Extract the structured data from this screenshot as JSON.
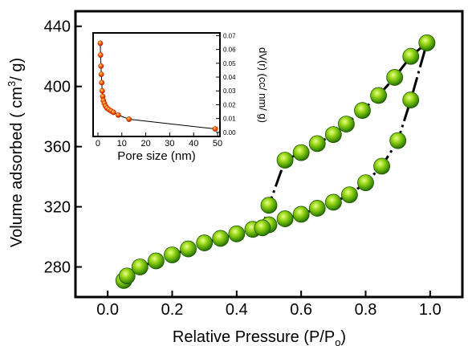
{
  "chart_data": [
    {
      "type": "scatter",
      "title": "",
      "xlabel": "Relative Pressure (P/P",
      "xlabel_sub": "o",
      "xlabel_end": ")",
      "ylabel": "Volume adsorbed ( cm",
      "ylabel_sup": "3",
      "ylabel_end": "/ g)",
      "xlim": [
        -0.1,
        1.1
      ],
      "ylim": [
        260,
        450
      ],
      "x_ticks": [
        "0.0",
        "0.2",
        "0.4",
        "0.6",
        "0.8",
        "1.0"
      ],
      "x_tick_values": [
        0.0,
        0.2,
        0.4,
        0.6,
        0.8,
        1.0
      ],
      "y_ticks": [
        "280",
        "320",
        "360",
        "400",
        "440"
      ],
      "y_tick_values": [
        280,
        320,
        360,
        400,
        440
      ],
      "marker_color": "#44aa00",
      "line_color": "#000000",
      "series": [
        {
          "x": [
            0.05,
            0.06,
            0.1,
            0.15,
            0.2,
            0.25,
            0.3,
            0.35,
            0.4,
            0.45,
            0.5,
            0.55,
            0.6,
            0.65,
            0.7,
            0.75,
            0.8,
            0.85,
            0.9,
            0.94,
            0.99
          ],
          "y": [
            271,
            274,
            280,
            284,
            288,
            292,
            296,
            299,
            302,
            305,
            308,
            312,
            315,
            319,
            323,
            328,
            336,
            347,
            364,
            391,
            429
          ]
        },
        {
          "x": [
            0.99,
            0.94,
            0.89,
            0.84,
            0.79,
            0.74,
            0.7,
            0.65,
            0.6,
            0.55,
            0.5,
            0.48
          ],
          "y": [
            429,
            420,
            406,
            394,
            384,
            375,
            368,
            362,
            356,
            351,
            321,
            306
          ]
        }
      ]
    },
    {
      "type": "line",
      "title": "",
      "xlabel": "Pore size (nm)",
      "ylabel": "dV(r) (cc/ nm/ g)",
      "xlim": [
        -2,
        51
      ],
      "ylim": [
        -0.003,
        0.072
      ],
      "x_ticks": [
        "0",
        "10",
        "20",
        "30",
        "40",
        "50"
      ],
      "x_tick_values": [
        0,
        10,
        20,
        30,
        40,
        50
      ],
      "y_ticks": [
        "0.00",
        "0.01",
        "0.02",
        "0.03",
        "0.04",
        "0.05",
        "0.06",
        "0.07"
      ],
      "y_tick_values": [
        0.0,
        0.01,
        0.02,
        0.03,
        0.04,
        0.05,
        0.06,
        0.07
      ],
      "marker_color": "#ee2200",
      "series": [
        {
          "x": [
            1.0,
            1.1,
            1.3,
            1.4,
            1.6,
            1.8,
            2.0,
            2.3,
            2.7,
            3.2,
            3.8,
            4.6,
            5.5,
            6.5,
            8.5,
            13.0,
            49.0
          ],
          "y": [
            0.0645,
            0.056,
            0.048,
            0.042,
            0.036,
            0.03,
            0.026,
            0.023,
            0.021,
            0.019,
            0.0175,
            0.0165,
            0.0155,
            0.0145,
            0.0125,
            0.0095,
            0.0025
          ]
        }
      ]
    }
  ]
}
